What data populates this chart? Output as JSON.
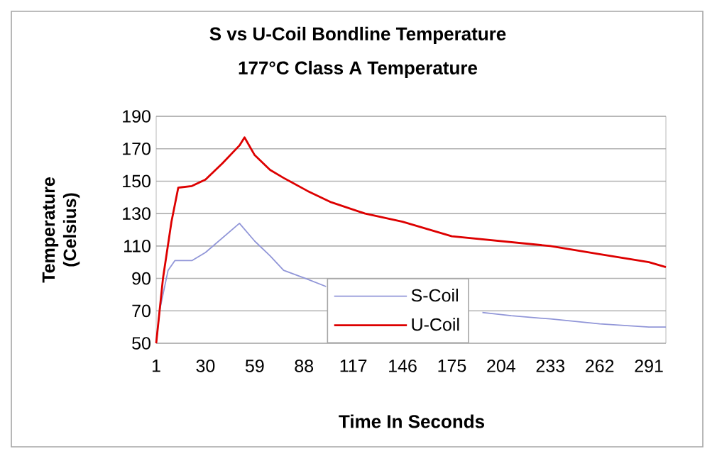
{
  "chart_data": {
    "type": "line",
    "title": "S vs U-Coil Bondline Temperature",
    "subtitle": "177°C Class A Temperature",
    "xlabel": "Time In Seconds",
    "ylabel": "Temperature (Celsius)",
    "xlim": [
      1,
      301
    ],
    "xticks": [
      1,
      30,
      59,
      88,
      117,
      146,
      175,
      204,
      233,
      262,
      291
    ],
    "ylim": [
      50,
      190
    ],
    "yticks": [
      50,
      70,
      90,
      110,
      130,
      150,
      170,
      190
    ],
    "grid": "y",
    "legend": "bottom",
    "marker": "none",
    "line_style": "solid",
    "series": [
      {
        "name": "S-Coil",
        "color": "#9196d8",
        "x": [
          1,
          3,
          5,
          8,
          12,
          22,
          30,
          40,
          50,
          59,
          68,
          76,
          90,
          101,
          110,
          180,
          193,
          210,
          233,
          262,
          291,
          301
        ],
        "values": [
          50,
          70,
          80,
          95,
          101,
          101,
          106,
          115,
          124,
          113,
          104,
          95,
          89.5,
          85,
          null,
          null,
          69,
          67,
          65,
          62,
          60,
          60
        ]
      },
      {
        "name": "U-Coil",
        "color": "#dd0000",
        "x": [
          1,
          5,
          10,
          14,
          22,
          30,
          40,
          50,
          53,
          59,
          68,
          76,
          90,
          104,
          124,
          146,
          175,
          204,
          233,
          262,
          291,
          301
        ],
        "values": [
          50,
          90,
          125,
          146,
          147,
          151,
          161,
          172,
          177,
          166,
          157,
          152,
          144,
          137,
          130,
          125,
          116,
          113,
          110,
          105,
          100,
          97
        ]
      }
    ]
  }
}
